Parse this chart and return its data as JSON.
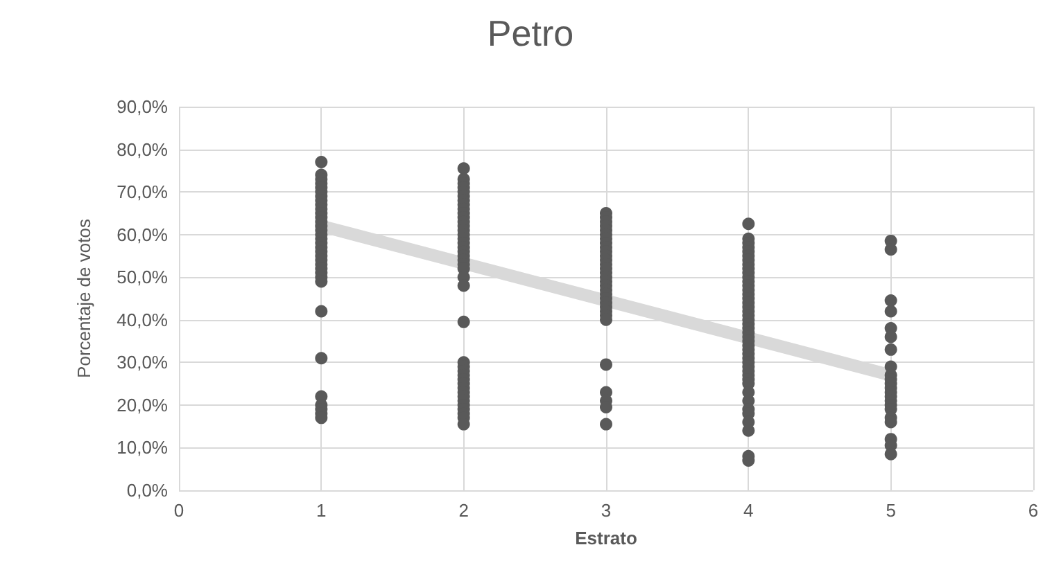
{
  "chart_data": {
    "type": "scatter",
    "title": "Petro",
    "xlabel": "Estrato",
    "ylabel": "Porcentaje de votos",
    "xlim": [
      0,
      6
    ],
    "xticks": [
      0,
      1,
      2,
      3,
      4,
      5,
      6
    ],
    "ylim": [
      0,
      90
    ],
    "yticks": [
      {
        "value": 0,
        "label": "0,0%"
      },
      {
        "value": 10,
        "label": "10,0%"
      },
      {
        "value": 20,
        "label": "20,0%"
      },
      {
        "value": 30,
        "label": "30,0%"
      },
      {
        "value": 40,
        "label": "40,0%"
      },
      {
        "value": 50,
        "label": "50,0%"
      },
      {
        "value": 60,
        "label": "60,0%"
      },
      {
        "value": 70,
        "label": "70,0%"
      },
      {
        "value": 80,
        "label": "80,0%"
      },
      {
        "value": 90,
        "label": "90,0%"
      }
    ],
    "grid": true,
    "marker": "circle",
    "series": [
      {
        "color": "#595959",
        "x": [
          1,
          1,
          1,
          1,
          1,
          1,
          1,
          1,
          1,
          1,
          1,
          1,
          1,
          1,
          1,
          1,
          1,
          1,
          1,
          1,
          1,
          1,
          1,
          1,
          1,
          1,
          1,
          1,
          1,
          1,
          1,
          1,
          1,
          1,
          2,
          2,
          2,
          2,
          2,
          2,
          2,
          2,
          2,
          2,
          2,
          2,
          2,
          2,
          2,
          2,
          2,
          2,
          2,
          2,
          2,
          2,
          2,
          2,
          2,
          2,
          2,
          2,
          2,
          2,
          2,
          2,
          2,
          2,
          2,
          2,
          2,
          2,
          2,
          2,
          2,
          3,
          3,
          3,
          3,
          3,
          3,
          3,
          3,
          3,
          3,
          3,
          3,
          3,
          3,
          3,
          3,
          3,
          3,
          3,
          3,
          3,
          3,
          3,
          3,
          3,
          3,
          3,
          3,
          3,
          3,
          3,
          4,
          4,
          4,
          4,
          4,
          4,
          4,
          4,
          4,
          4,
          4,
          4,
          4,
          4,
          4,
          4,
          4,
          4,
          4,
          4,
          4,
          4,
          4,
          4,
          4,
          4,
          4,
          4,
          4,
          4,
          4,
          4,
          4,
          4,
          4,
          4,
          4,
          4,
          4,
          4,
          4,
          4,
          4,
          4,
          5,
          5,
          5,
          5,
          5,
          5,
          5,
          5,
          5,
          5,
          5,
          5,
          5,
          5,
          5,
          5,
          5,
          5,
          5,
          5,
          5,
          5
        ],
        "values": [
          77,
          74,
          73,
          72,
          71,
          70,
          69,
          68,
          67,
          66,
          65,
          64,
          63,
          62,
          61,
          60,
          59,
          58,
          57,
          56,
          55,
          54,
          53,
          52,
          51,
          50,
          49,
          42,
          31,
          22,
          20,
          19,
          18,
          17,
          75.5,
          73,
          72,
          71,
          70,
          69,
          68,
          67,
          66,
          65,
          64,
          63,
          62,
          61,
          60,
          59,
          58,
          57,
          56,
          55,
          54,
          53,
          52,
          50,
          48,
          39.5,
          30,
          29,
          28,
          27,
          26,
          25,
          24,
          23,
          22,
          21,
          20,
          19,
          18,
          17,
          15.5,
          65,
          64,
          63,
          62,
          61,
          60,
          59,
          58,
          57,
          56,
          55,
          54,
          53,
          52,
          51,
          50,
          49,
          48,
          47,
          46,
          45,
          44,
          43,
          42,
          41,
          40,
          29.5,
          23,
          21,
          19.5,
          15.5,
          62.5,
          59,
          58,
          57,
          56,
          55,
          54,
          53,
          52,
          51,
          50,
          49,
          48,
          47,
          46,
          45,
          44,
          43,
          42,
          41,
          40,
          39,
          38,
          37,
          36,
          35,
          34,
          33,
          32,
          31,
          30,
          29,
          28,
          27,
          26,
          25,
          23,
          21,
          19,
          18,
          16,
          14,
          8,
          7,
          58.5,
          56.5,
          44.5,
          42,
          38,
          36,
          33,
          29,
          27,
          26,
          25,
          24,
          23,
          22,
          21,
          20,
          19,
          17,
          16,
          12,
          10.5,
          8.5
        ]
      },
      {
        "type": "line",
        "color": "#d9d9d9",
        "marker": "none",
        "x": [
          1,
          5
        ],
        "values": [
          62,
          27
        ]
      }
    ]
  }
}
